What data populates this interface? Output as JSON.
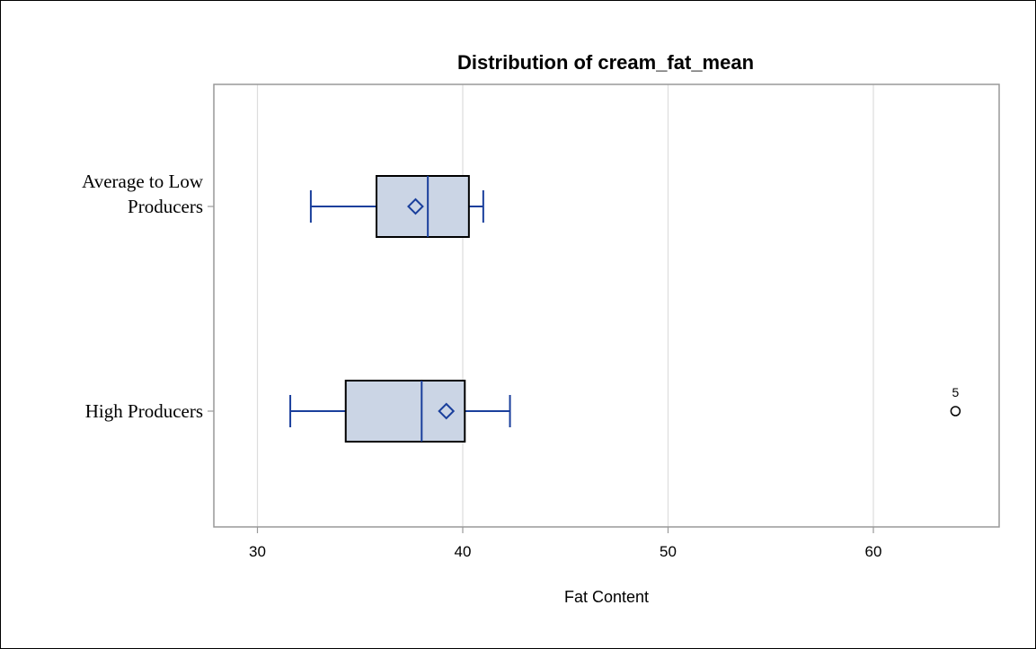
{
  "chart_data": {
    "type": "boxplot",
    "orientation": "horizontal",
    "title": "Distribution of cream_fat_mean",
    "xlabel": "Fat Content",
    "ylabel": "",
    "xlim": [
      28,
      66
    ],
    "xticks": [
      30,
      40,
      50,
      60
    ],
    "grid": "vertical",
    "colors": {
      "box_fill": "#cbd5e5",
      "box_edge": "#000000",
      "whisker": "#1a3f9c",
      "median": "#1a3f9c",
      "mean_marker": "#1a3f9c",
      "grid": "#dddddd",
      "axis": "#999999"
    },
    "categories": [
      {
        "label_lines": [
          "Average to Low",
          "Producers"
        ],
        "min": 32.6,
        "q1": 35.8,
        "median": 38.3,
        "q3": 40.3,
        "max": 41.0,
        "mean": 37.7,
        "outliers": []
      },
      {
        "label_lines": [
          "High Producers"
        ],
        "min": 31.6,
        "q1": 34.3,
        "median": 38.0,
        "q3": 40.1,
        "max": 42.3,
        "mean": 39.2,
        "outliers": [
          {
            "value": 64.0,
            "label": "5"
          }
        ]
      }
    ]
  }
}
